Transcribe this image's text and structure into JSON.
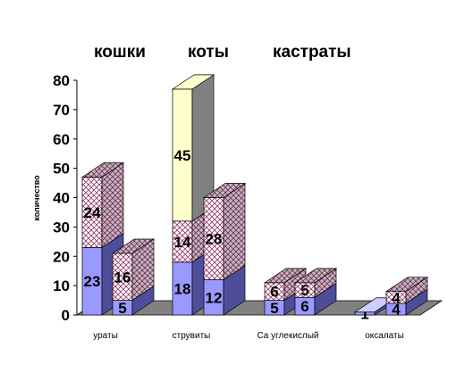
{
  "chart_data": {
    "type": "bar",
    "stacked": true,
    "three_d": true,
    "ylabel": "количество",
    "ylim": [
      0,
      80
    ],
    "yticks": [
      0,
      10,
      20,
      30,
      40,
      50,
      60,
      70,
      80
    ],
    "categories": [
      "ураты",
      "струвиты",
      "Са углекислый",
      "оксалаты"
    ],
    "legend": [
      "кошки",
      "коты",
      "кастраты"
    ],
    "legend_position": "top",
    "stack_segments": [
      "low",
      "mid",
      "high"
    ],
    "bars": [
      {
        "category": "ураты",
        "group": "кошки",
        "segments": [
          23,
          24,
          0
        ]
      },
      {
        "category": "ураты",
        "group": "коты",
        "segments": [
          5,
          16,
          0
        ]
      },
      {
        "category": "струвиты",
        "group": "кошки",
        "segments": [
          18,
          14,
          45
        ]
      },
      {
        "category": "струвиты",
        "group": "коты",
        "segments": [
          12,
          28,
          0
        ]
      },
      {
        "category": "Са углекислый",
        "group": "кошки",
        "segments": [
          5,
          6,
          0
        ]
      },
      {
        "category": "Са углекислый",
        "group": "коты",
        "segments": [
          6,
          5,
          0
        ]
      },
      {
        "category": "оксалаты",
        "group": "кошки",
        "segments": [
          1,
          0,
          0
        ]
      },
      {
        "category": "оксалаты",
        "group": "коты",
        "segments": [
          4,
          4,
          0
        ]
      }
    ],
    "colors": {
      "low": "#9999ff",
      "mid": "#ffffff",
      "high": "#ffffcc",
      "hatch": "#993366",
      "floor": "#808080"
    }
  }
}
